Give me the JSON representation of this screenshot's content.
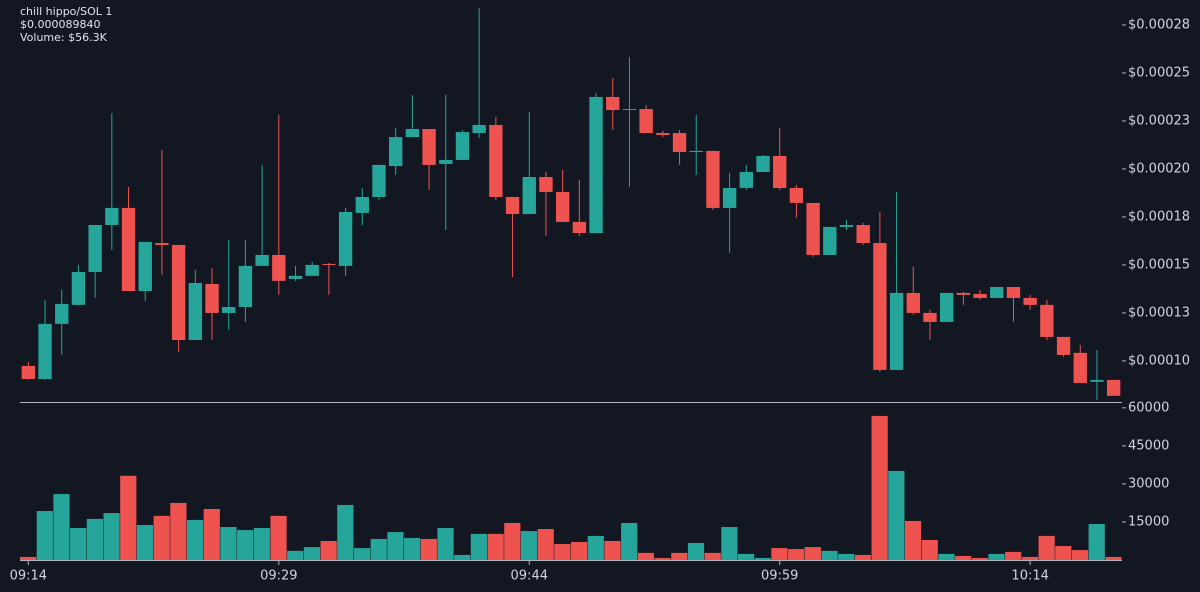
{
  "chart_data": {
    "type": "candlestick",
    "title": "chill hippo/SOL 1",
    "subtitle": "$0.000089840",
    "annotation": "Volume: $56.3K",
    "up_color": "#26a69a",
    "down_color": "#ef5350",
    "categories": [
      "09:14",
      null,
      null,
      null,
      null,
      null,
      null,
      null,
      null,
      null,
      null,
      null,
      null,
      null,
      null,
      "09:29",
      null,
      null,
      null,
      null,
      null,
      null,
      null,
      null,
      null,
      null,
      null,
      null,
      null,
      null,
      "09:44",
      null,
      null,
      null,
      null,
      null,
      null,
      null,
      null,
      null,
      null,
      null,
      null,
      null,
      null,
      "09:59",
      null,
      null,
      null,
      null,
      null,
      null,
      null,
      null,
      null,
      null,
      null,
      null,
      null,
      null,
      "10:14",
      null,
      null,
      null,
      null,
      null
    ],
    "open": [
      9.74e-05,
      9.06e-05,
      0.0001193,
      0.0001292,
      0.0001463,
      0.0001708,
      0.0001797,
      0.0001364,
      0.0001614,
      0.0001604,
      0.0001109,
      0.0001401,
      0.000125,
      0.0001281,
      0.0001495,
      0.0001552,
      0.0001427,
      0.0001443,
      0.0001505,
      0.0001495,
      0.0001771,
      0.0001854,
      0.0002015,
      0.0002166,
      0.0002208,
      0.0002026,
      0.0002047,
      0.0002187,
      0.0002229,
      0.0001854,
      0.0001765,
      0.0001958,
      0.000188,
      0.0001724,
      0.0001666,
      0.0002375,
      0.0002312,
      0.0002312,
      0.0002187,
      0.0002187,
      0.0002088,
      0.0002094,
      0.0001797,
      0.0001901,
      0.0001984,
      0.0002068,
      0.0001901,
      0.0001823,
      0.0001552,
      0.0001698,
      0.0001708,
      0.0001614,
      9.53e-05,
      0.0001354,
      0.000125,
      0.0001203,
      0.0001354,
      0.0001349,
      0.0001328,
      0.0001385,
      0.0001328,
      0.0001292,
      0.0001125,
      0.0001042,
      8.91e-05,
      9.01e-05
    ],
    "high": [
      9.95e-05,
      0.0001318,
      0.000137,
      0.00015,
      0.0001708,
      0.0002291,
      0.0001906,
      0.000162,
      0.0002099,
      0.0001604,
      0.0001474,
      0.0001484,
      0.000163,
      0.000163,
      0.0002021,
      0.0002281,
      0.0001495,
      0.0001516,
      0.000151,
      0.0001797,
      0.0001901,
      0.0002021,
      0.0002213,
      0.0002385,
      0.0002208,
      0.0002385,
      0.0002203,
      0.0002838,
      0.0002271,
      0.0001854,
      0.0002297,
      0.0001984,
      0.0001995,
      0.0001943,
      0.0002396,
      0.0002474,
      0.0002583,
      0.0002333,
      0.0002198,
      0.0002203,
      0.0002281,
      0.0002094,
      0.0001979,
      0.0002021,
      0.0002073,
      0.0002213,
      0.0001917,
      0.0001823,
      0.0001698,
      0.0001734,
      0.0001719,
      0.0001776,
      0.000188,
      0.000149,
      0.0001266,
      0.0001354,
      0.0001359,
      0.000137,
      0.0001385,
      0.0001385,
      0.0001344,
      0.0001318,
      0.0001125,
      0.0001083,
      0.0001057,
      9.01e-05
    ],
    "low": [
      9.01e-05,
      9.01e-05,
      0.0001031,
      0.0001292,
      0.0001328,
      0.0001578,
      0.0001364,
      0.0001312,
      0.0001448,
      0.0001047,
      0.0001109,
      0.0001109,
      0.0001161,
      0.0001203,
      0.0001495,
      0.0001344,
      0.0001417,
      0.0001443,
      0.0001344,
      0.0001443,
      0.0001708,
      0.0001838,
      0.0001969,
      0.0002166,
      0.000189,
      0.0001682,
      0.0002047,
      0.0002161,
      0.0001838,
      0.0001437,
      0.0001765,
      0.0001651,
      0.0001724,
      0.0001651,
      0.0001666,
      0.0002203,
      0.0001906,
      0.0002187,
      0.0002166,
      0.0002021,
      0.0001969,
      0.0001786,
      0.0001562,
      0.000189,
      0.0001984,
      0.000189,
      0.0001745,
      0.0001542,
      0.0001552,
      0.0001682,
      0.0001604,
      9.43e-05,
      9.53e-05,
      0.000124,
      0.0001109,
      0.0001203,
      0.0001292,
      0.0001318,
      0.0001328,
      0.0001203,
      0.0001266,
      0.0001109,
      0.0001021,
      8.85e-05,
      7.97e-05,
      8.18e-05
    ],
    "close": [
      9.06e-05,
      0.0001193,
      0.0001297,
      0.0001463,
      0.0001708,
      0.0001797,
      0.0001364,
      0.000162,
      0.0001604,
      0.0001109,
      0.0001406,
      0.000125,
      0.0001281,
      0.0001495,
      0.0001552,
      0.0001417,
      0.0001443,
      0.00015,
      0.00015,
      0.0001776,
      0.0001854,
      0.0002021,
      0.0002166,
      0.0002208,
      0.0002021,
      0.0002047,
      0.0002192,
      0.0002229,
      0.0001854,
      0.0001765,
      0.0001958,
      0.000188,
      0.0001724,
      0.0001666,
      0.0002375,
      0.0002307,
      0.0002312,
      0.0002187,
      0.0002177,
      0.0002088,
      0.0002094,
      0.0001797,
      0.0001901,
      0.0001984,
      0.0002068,
      0.0001901,
      0.0001823,
      0.0001552,
      0.0001698,
      0.0001708,
      0.0001614,
      9.53e-05,
      0.0001354,
      0.000125,
      0.0001203,
      0.0001354,
      0.0001344,
      0.0001328,
      0.0001385,
      0.0001328,
      0.0001292,
      0.0001125,
      0.0001031,
      8.85e-05,
      9.01e-05,
      8.18e-05
    ],
    "volume": [
      1200,
      19300,
      26000,
      12600,
      16200,
      18500,
      33200,
      13800,
      17400,
      22500,
      15800,
      20100,
      13000,
      11800,
      12600,
      17400,
      3600,
      5100,
      7500,
      21700,
      4700,
      8300,
      11000,
      8700,
      8300,
      12600,
      2000,
      10300,
      10300,
      14600,
      11400,
      12200,
      6300,
      7100,
      9500,
      7500,
      14600,
      2800,
      800,
      2800,
      6700,
      2800,
      13000,
      2400,
      800,
      4700,
      4300,
      5100,
      3600,
      2400,
      2000,
      56800,
      35100,
      15400,
      7900,
      2400,
      1600,
      800,
      2400,
      3200,
      1200,
      9500,
      5500,
      3900,
      14200,
      1200
    ],
    "ylim": [
      7.86e-05,
      0.000288
    ],
    "yticks": [
      {
        "value": 0.0001,
        "label": "$0.00010"
      },
      {
        "value": 0.000125,
        "label": "$0.00013"
      },
      {
        "value": 0.00015,
        "label": "$0.00015"
      },
      {
        "value": 0.000175,
        "label": "$0.00018"
      },
      {
        "value": 0.0002,
        "label": "$0.00020"
      },
      {
        "value": 0.000225,
        "label": "$0.00023"
      },
      {
        "value": 0.00025,
        "label": "$0.00025"
      },
      {
        "value": 0.000275,
        "label": "$0.00028"
      }
    ],
    "y2lim": [
      0,
      61500
    ],
    "y2ticks": [
      15000,
      30000,
      45000,
      60000
    ]
  }
}
